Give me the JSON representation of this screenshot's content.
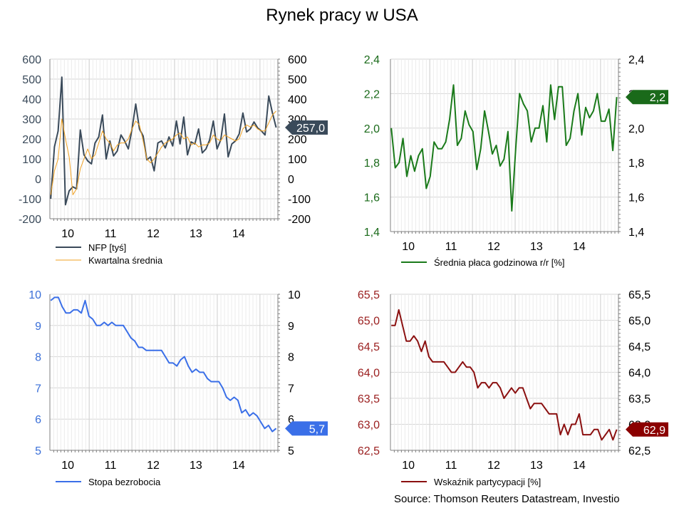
{
  "title": "Rynek pracy w USA",
  "source": "Source: Thomson Reuters Datastream, Investio",
  "chart_data": [
    {
      "type": "line",
      "name": "nfp",
      "ylim": [
        -200,
        600
      ],
      "yticks": [
        "600",
        "500",
        "400",
        "300",
        "200",
        "100",
        "0",
        "-100",
        "-200"
      ],
      "ytick_values": [
        600,
        500,
        400,
        300,
        200,
        100,
        0,
        -100,
        -200
      ],
      "xticks": [
        "10",
        "11",
        "12",
        "13",
        "14"
      ],
      "x_start": 2009.58,
      "x_end": 2014.92,
      "tick_color": "#3a4a5a",
      "series": [
        {
          "name": "NFP [tyś]",
          "color": "#3a4a5a",
          "width": 2,
          "values": [
            -100,
            160,
            240,
            510,
            -130,
            -60,
            -40,
            -50,
            245,
            120,
            90,
            75,
            180,
            210,
            320,
            100,
            190,
            115,
            140,
            220,
            190,
            150,
            250,
            375,
            250,
            215,
            95,
            110,
            40,
            180,
            190,
            155,
            210,
            165,
            290,
            175,
            310,
            120,
            185,
            175,
            250,
            130,
            150,
            195,
            290,
            150,
            195,
            325,
            110,
            175,
            190,
            225,
            330,
            235,
            250,
            285,
            255,
            240,
            220,
            415,
            330,
            257
          ]
        },
        {
          "name": "Kwartalna średnia",
          "color": "#f0a020",
          "width": 1,
          "values": [
            -80,
            40,
            100,
            300,
            200,
            110,
            -80,
            -50,
            50,
            100,
            150,
            100,
            120,
            180,
            240,
            200,
            180,
            140,
            170,
            180,
            180,
            200,
            250,
            290,
            270,
            190,
            100,
            80,
            100,
            130,
            160,
            180,
            190,
            200,
            220,
            230,
            200,
            210,
            170,
            180,
            160,
            170,
            170,
            180,
            220,
            200,
            190,
            220,
            210,
            200,
            190,
            200,
            250,
            270,
            260,
            270,
            250,
            240,
            240,
            280,
            320,
            340
          ]
        }
      ],
      "tag": {
        "label": "257,0",
        "value": 257,
        "color": "#3a4a5a"
      }
    },
    {
      "type": "line",
      "name": "wage",
      "ylim": [
        1.4,
        2.4
      ],
      "yticks": [
        "2,4",
        "2,2",
        "2,0",
        "1,8",
        "1,6",
        "1,4"
      ],
      "ytick_values": [
        2.4,
        2.2,
        2.0,
        1.8,
        1.6,
        1.4
      ],
      "xticks": [
        "10",
        "11",
        "12",
        "13",
        "14"
      ],
      "x_start": 2009.58,
      "x_end": 2014.92,
      "tick_color": "#1a6a1a",
      "series": [
        {
          "name": "Średnia płaca godzinowa r/r [%]",
          "color": "#1a7a1a",
          "width": 2,
          "values": [
            2.0,
            1.77,
            1.8,
            1.94,
            1.72,
            1.84,
            1.75,
            1.84,
            1.88,
            1.65,
            1.72,
            1.92,
            1.88,
            1.88,
            1.92,
            2.05,
            2.25,
            1.9,
            1.94,
            2.1,
            2.02,
            1.98,
            1.76,
            1.88,
            2.1,
            1.98,
            1.85,
            1.9,
            1.78,
            1.82,
            1.98,
            1.52,
            1.88,
            2.2,
            2.14,
            2.1,
            1.92,
            2.0,
            2.0,
            2.13,
            1.92,
            2.25,
            2.05,
            2.24,
            2.24,
            1.9,
            1.94,
            2.1,
            2.2,
            1.96,
            2.12,
            2.06,
            2.1,
            2.2,
            2.04,
            2.04,
            2.11,
            1.87,
            2.18
          ]
        }
      ],
      "tag": {
        "label": "2,2",
        "value": 2.18,
        "color": "#1a6a1a"
      }
    },
    {
      "type": "line",
      "name": "unemployment",
      "ylim": [
        5,
        10
      ],
      "yticks": [
        "10",
        "9",
        "8",
        "7",
        "6",
        "5"
      ],
      "ytick_values": [
        10,
        9,
        8,
        7,
        6,
        5
      ],
      "xticks": [
        "10",
        "11",
        "12",
        "13",
        "14"
      ],
      "x_start": 2009.58,
      "x_end": 2014.92,
      "tick_color": "#3a6fd8",
      "series": [
        {
          "name": "Stopa bezrobocia",
          "color": "#3a6fe8",
          "width": 2,
          "values": [
            9.8,
            9.9,
            9.9,
            9.6,
            9.4,
            9.4,
            9.5,
            9.5,
            9.4,
            9.8,
            9.3,
            9.2,
            9.0,
            9.0,
            9.1,
            9.0,
            9.1,
            9.0,
            9.0,
            9.0,
            8.8,
            8.6,
            8.5,
            8.3,
            8.3,
            8.2,
            8.2,
            8.2,
            8.2,
            8.2,
            8.0,
            7.8,
            7.8,
            7.7,
            7.9,
            8.0,
            7.7,
            7.5,
            7.6,
            7.5,
            7.5,
            7.3,
            7.2,
            7.2,
            7.2,
            7.0,
            6.7,
            6.6,
            6.7,
            6.6,
            6.2,
            6.3,
            6.1,
            6.2,
            6.1,
            5.9,
            5.7,
            5.8,
            5.6,
            5.7
          ]
        }
      ],
      "tag": {
        "label": "5,7",
        "value": 5.7,
        "color": "#3a6fe8"
      }
    },
    {
      "type": "line",
      "name": "participation",
      "ylim": [
        62.5,
        65.5
      ],
      "yticks": [
        "65,5",
        "65,0",
        "64,5",
        "64,0",
        "63,5",
        "63,0",
        "62,5"
      ],
      "ytick_values": [
        65.5,
        65.0,
        64.5,
        64.0,
        63.5,
        63.0,
        62.5
      ],
      "xticks": [
        "10",
        "11",
        "12",
        "13",
        "14"
      ],
      "x_start": 2009.58,
      "x_end": 2014.92,
      "tick_color": "#9b2020",
      "series": [
        {
          "name": "Wskaźnik partycypacji [%]",
          "color": "#8b1010",
          "width": 2,
          "values": [
            64.9,
            64.9,
            65.2,
            64.9,
            64.6,
            64.6,
            64.7,
            64.6,
            64.4,
            64.6,
            64.3,
            64.2,
            64.2,
            64.2,
            64.2,
            64.1,
            64.0,
            64.0,
            64.1,
            64.2,
            64.1,
            64.1,
            64.0,
            63.7,
            63.8,
            63.8,
            63.7,
            63.8,
            63.8,
            63.7,
            63.5,
            63.6,
            63.7,
            63.6,
            63.7,
            63.7,
            63.5,
            63.3,
            63.4,
            63.4,
            63.4,
            63.3,
            63.2,
            63.2,
            63.2,
            62.8,
            63.0,
            62.8,
            63.0,
            63.0,
            63.2,
            62.8,
            62.8,
            62.8,
            62.9,
            62.9,
            62.7,
            62.8,
            62.9,
            62.7,
            62.9
          ]
        }
      ],
      "tag": {
        "label": "62,9",
        "value": 62.9,
        "color": "#8b0000"
      }
    }
  ]
}
